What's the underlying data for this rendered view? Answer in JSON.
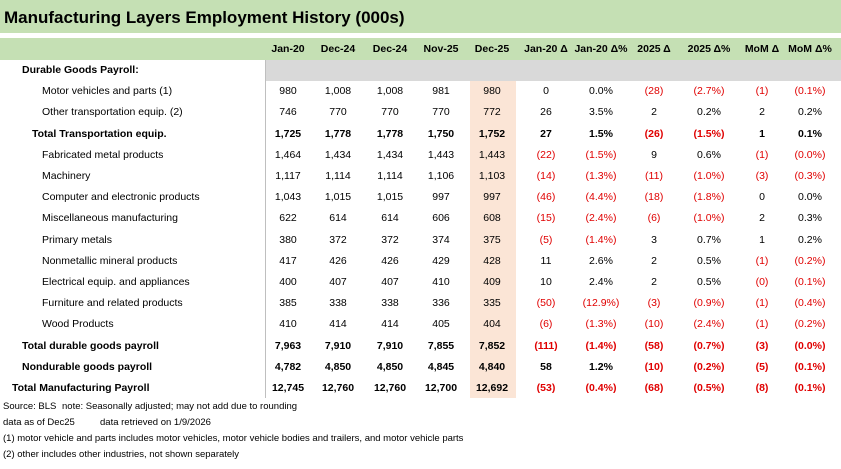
{
  "title": "Manufacturing Layers Employment History (000s)",
  "table": {
    "headers": [
      "Jan-20",
      "Dec-24",
      "Dec-24",
      "Nov-25",
      "Dec-25",
      "Jan-20 Δ",
      "Jan-20 Δ%",
      "2025 Δ",
      "2025 Δ%",
      "MoM Δ",
      "MoM Δ%"
    ],
    "rows": [
      {
        "label": "Durable Goods Payroll:",
        "cells": []
      },
      {
        "label": "Motor vehicles and parts (1)",
        "cells": [
          "980",
          "1,008",
          "1,008",
          "981",
          "980",
          "0",
          "0.0%",
          "(28)",
          "(2.7%)",
          "(1)",
          "(0.1%)"
        ]
      },
      {
        "label": "Other transportation equip. (2)",
        "cells": [
          "746",
          "770",
          "770",
          "770",
          "772",
          "26",
          "3.5%",
          "2",
          "0.2%",
          "2",
          "0.2%"
        ]
      },
      {
        "label": "Total Transportation equip.",
        "cells": [
          "1,725",
          "1,778",
          "1,778",
          "1,750",
          "1,752",
          "27",
          "1.5%",
          "(26)",
          "(1.5%)",
          "1",
          "0.1%"
        ]
      },
      {
        "label": "Fabricated metal products",
        "cells": [
          "1,464",
          "1,434",
          "1,434",
          "1,443",
          "1,443",
          "(22)",
          "(1.5%)",
          "9",
          "0.6%",
          "(1)",
          "(0.0%)"
        ]
      },
      {
        "label": "Machinery",
        "cells": [
          "1,117",
          "1,114",
          "1,114",
          "1,106",
          "1,103",
          "(14)",
          "(1.3%)",
          "(11)",
          "(1.0%)",
          "(3)",
          "(0.3%)"
        ]
      },
      {
        "label": "Computer and electronic products",
        "cells": [
          "1,043",
          "1,015",
          "1,015",
          "997",
          "997",
          "(46)",
          "(4.4%)",
          "(18)",
          "(1.8%)",
          "0",
          "0.0%"
        ]
      },
      {
        "label": "Miscellaneous manufacturing",
        "cells": [
          "622",
          "614",
          "614",
          "606",
          "608",
          "(15)",
          "(2.4%)",
          "(6)",
          "(1.0%)",
          "2",
          "0.3%"
        ]
      },
      {
        "label": "Primary metals",
        "cells": [
          "380",
          "372",
          "372",
          "374",
          "375",
          "(5)",
          "(1.4%)",
          "3",
          "0.7%",
          "1",
          "0.2%"
        ]
      },
      {
        "label": "Nonmetallic mineral products",
        "cells": [
          "417",
          "426",
          "426",
          "429",
          "428",
          "11",
          "2.6%",
          "2",
          "0.5%",
          "(1)",
          "(0.2%)"
        ]
      },
      {
        "label": "Electrical equip. and appliances",
        "cells": [
          "400",
          "407",
          "407",
          "410",
          "409",
          "10",
          "2.4%",
          "2",
          "0.5%",
          "(0)",
          "(0.1%)"
        ]
      },
      {
        "label": "Furniture and related products",
        "cells": [
          "385",
          "338",
          "338",
          "336",
          "335",
          "(50)",
          "(12.9%)",
          "(3)",
          "(0.9%)",
          "(1)",
          "(0.4%)"
        ]
      },
      {
        "label": "Wood Products",
        "cells": [
          "410",
          "414",
          "414",
          "405",
          "404",
          "(6)",
          "(1.3%)",
          "(10)",
          "(2.4%)",
          "(1)",
          "(0.2%)"
        ]
      },
      {
        "label": "Total durable goods payroll",
        "cells": [
          "7,963",
          "7,910",
          "7,910",
          "7,855",
          "7,852",
          "(111)",
          "(1.4%)",
          "(58)",
          "(0.7%)",
          "(3)",
          "(0.0%)"
        ]
      },
      {
        "label": "Nondurable goods payroll",
        "cells": [
          "4,782",
          "4,850",
          "4,850",
          "4,845",
          "4,840",
          "58",
          "1.2%",
          "(10)",
          "(0.2%)",
          "(5)",
          "(0.1%)"
        ]
      },
      {
        "label": "Total Manufacturing Payroll",
        "cells": [
          "12,745",
          "12,760",
          "12,760",
          "12,700",
          "12,692",
          "(53)",
          "(0.4%)",
          "(68)",
          "(0.5%)",
          "(8)",
          "(0.1%)"
        ]
      }
    ]
  },
  "notes": [
    [
      "Source: BLS",
      "note: Seasonally adjusted; may not add due to rounding"
    ],
    [
      "data as of Dec25",
      "data retrieved on 1/9/2026"
    ],
    [
      "(1) motor vehicle and parts includes motor vehicles, motor vehicle bodies and trailers, and motor vehicle parts"
    ],
    [
      "(2) other includes other industries, not shown separately"
    ]
  ]
}
